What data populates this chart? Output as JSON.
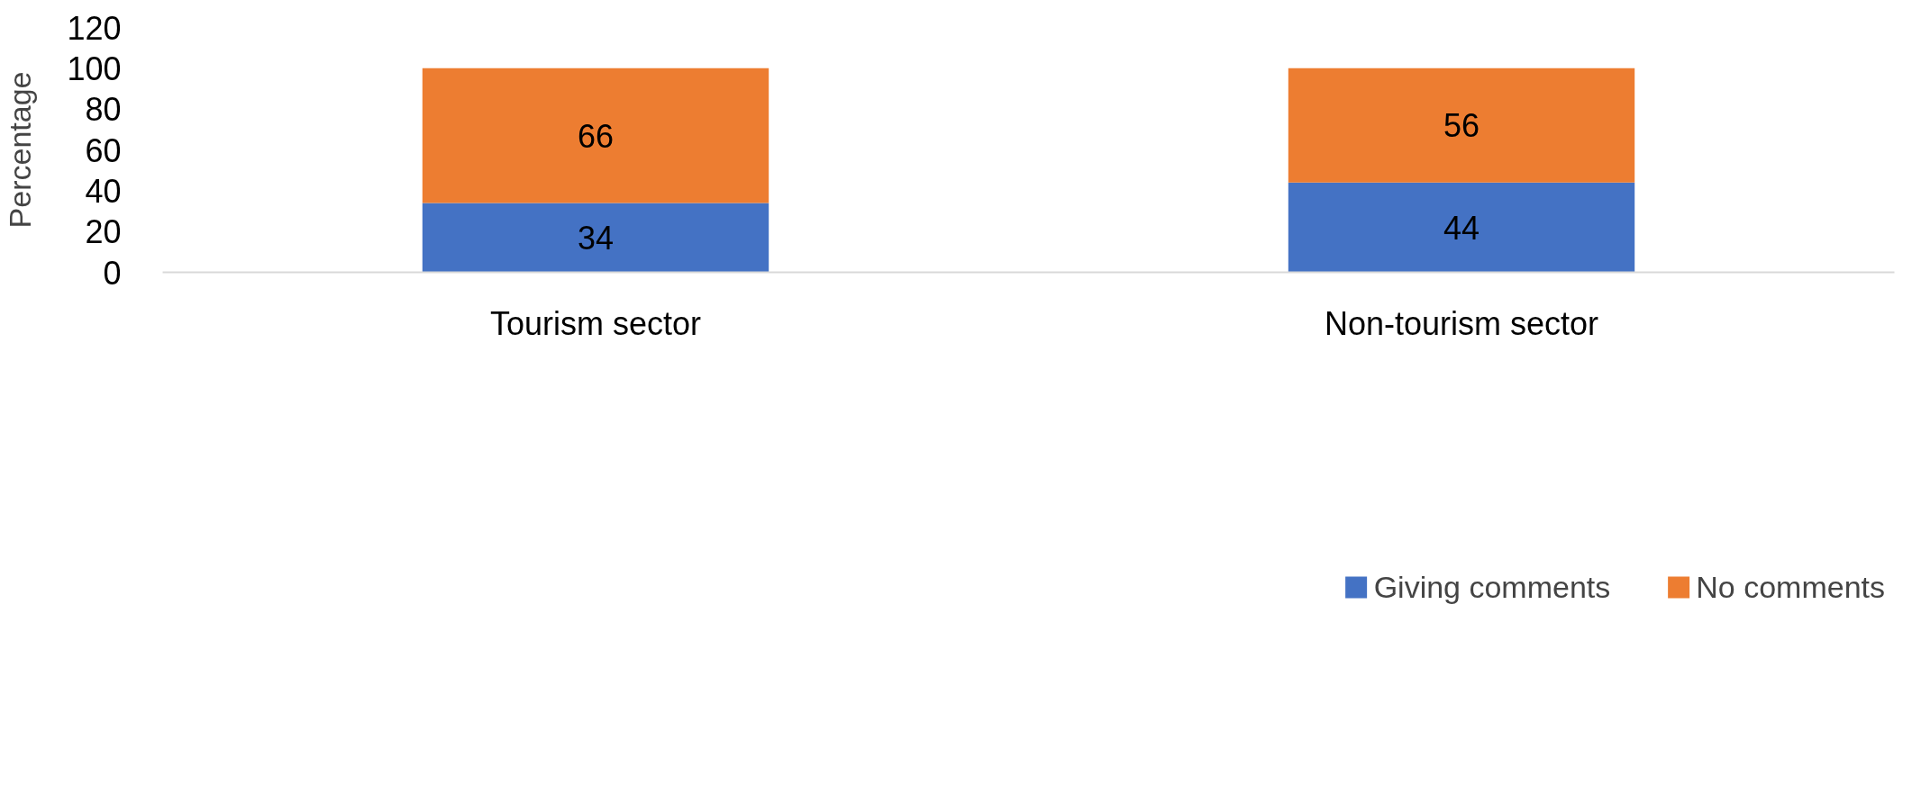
{
  "chart_data": {
    "type": "bar",
    "stacked": true,
    "ylabel": "Percentage",
    "categories": [
      "Tourism sector",
      "Non-tourism sector"
    ],
    "series": [
      {
        "name": "Giving comments",
        "color": "#4472c4",
        "values": [
          34,
          44
        ]
      },
      {
        "name": "No comments",
        "color": "#ed7d31",
        "values": [
          66,
          56
        ]
      }
    ],
    "ylim": [
      0,
      120
    ],
    "yticks": [
      0,
      20,
      40,
      60,
      80,
      100,
      120
    ],
    "data_labels": true,
    "grid": false,
    "legend": "bottom"
  }
}
